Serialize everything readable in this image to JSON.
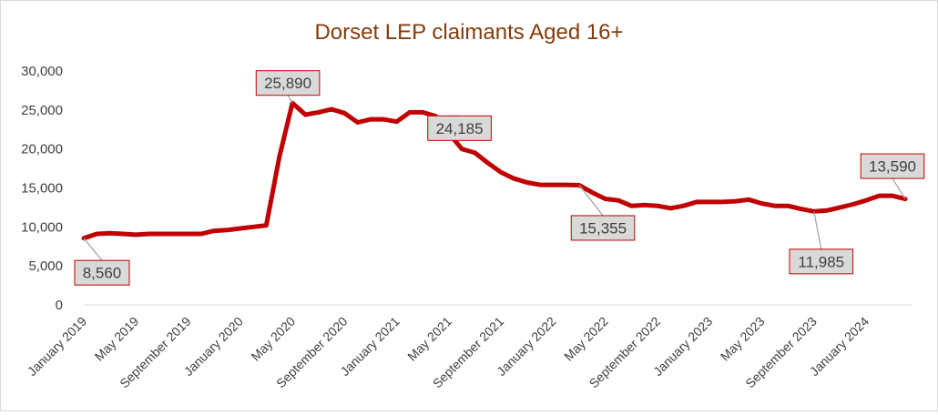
{
  "chart_data": {
    "type": "line",
    "title": "Dorset LEP claimants Aged 16+",
    "xlabel": "",
    "ylabel": "",
    "ylim": [
      0,
      30000
    ],
    "y_ticks": [
      0,
      5000,
      10000,
      15000,
      20000,
      25000,
      30000
    ],
    "y_tick_labels": [
      "0",
      "5,000",
      "10,000",
      "15,000",
      "20,000",
      "25,000",
      "30,000"
    ],
    "x_tick_labels": [
      "January 2019",
      "May 2019",
      "September 2019",
      "January 2020",
      "May 2020",
      "September 2020",
      "January 2021",
      "May 2021",
      "September 2021",
      "January 2022",
      "May 2022",
      "September 2022",
      "January 2023",
      "May 2023",
      "September 2023",
      "January 2024"
    ],
    "x_tick_every": 4,
    "grid": false,
    "legend": "none",
    "color": "#c00000",
    "series": [
      {
        "values": [
          8560,
          9100,
          9200,
          9100,
          9000,
          9100,
          9100,
          9100,
          9100,
          9100,
          9500,
          9600,
          9800,
          10000,
          10200,
          19000,
          25890,
          24400,
          24700,
          25100,
          24600,
          23400,
          23800,
          23800,
          23500,
          24700,
          24700,
          24185,
          22000,
          20000,
          19500,
          18200,
          17000,
          16200,
          15700,
          15400,
          15400,
          15400,
          15355,
          14400,
          13600,
          13400,
          12700,
          12800,
          12700,
          12400,
          12700,
          13200,
          13200,
          13200,
          13300,
          13500,
          13000,
          12700,
          12700,
          12300,
          11985,
          12100,
          12500,
          12900,
          13400,
          14000,
          14000,
          13590
        ]
      }
    ],
    "data_labels": [
      {
        "index": 0,
        "text": "8,560"
      },
      {
        "index": 16,
        "text": "25,890"
      },
      {
        "index": 27,
        "text": "24,185"
      },
      {
        "index": 38,
        "text": "15,355"
      },
      {
        "index": 56,
        "text": "11,985"
      },
      {
        "index": 63,
        "text": "13,590"
      }
    ]
  }
}
